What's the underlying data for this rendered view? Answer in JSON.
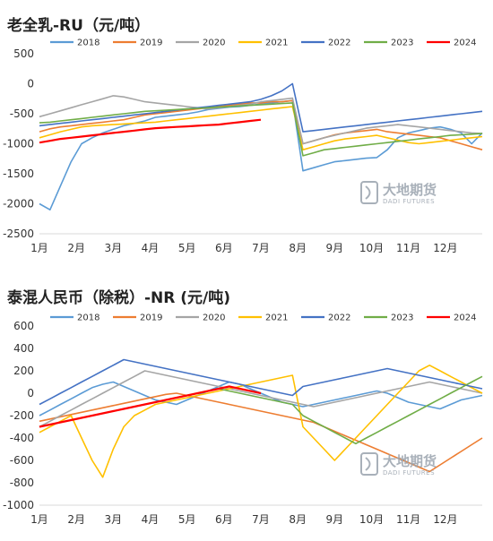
{
  "brand": {
    "name_cn": "大地期货",
    "name_en": "DADI FUTURES"
  },
  "chart_data": [
    {
      "type": "line",
      "title": "老全乳-RU（元/吨）",
      "x_tick_labels": [
        "1月",
        "2月",
        "3月",
        "4月",
        "5月",
        "6月",
        "7月",
        "8月",
        "9月",
        "10月",
        "11月",
        "12月"
      ],
      "y_ticks": [
        500,
        0,
        -500,
        -1000,
        -1500,
        -2000,
        -2500
      ],
      "ylim": [
        -2500,
        500
      ],
      "grid": false,
      "legend_position": "top",
      "series": [
        {
          "name": "2018",
          "color": "#5b9bd5",
          "values": [
            -2000,
            -2100,
            -1700,
            -1300,
            -1000,
            -900,
            -820,
            -760,
            -700,
            -660,
            -620,
            -560,
            -540,
            -520,
            -500,
            -470,
            -430,
            -410,
            -390,
            -380,
            -360,
            -340,
            -320,
            -300,
            -280,
            -1450,
            -1400,
            -1350,
            -1300,
            -1280,
            -1260,
            -1240,
            -1230,
            -1100,
            -900,
            -820,
            -780,
            -740,
            -720,
            -760,
            -820,
            -1000,
            -820
          ]
        },
        {
          "name": "2019",
          "color": "#ed7d31",
          "values": [
            -800,
            -750,
            -720,
            -700,
            -680,
            -660,
            -640,
            -620,
            -600,
            -560,
            -520,
            -500,
            -480,
            -460,
            -440,
            -420,
            -400,
            -380,
            -360,
            -340,
            -320,
            -320,
            -300,
            -300,
            -280,
            -1000,
            -950,
            -900,
            -850,
            -820,
            -800,
            -780,
            -760,
            -800,
            -820,
            -840,
            -860,
            -880,
            -900,
            -950,
            -1000,
            -1050,
            -1100
          ]
        },
        {
          "name": "2020",
          "color": "#a5a5a5",
          "values": [
            -550,
            -500,
            -450,
            -400,
            -350,
            -300,
            -250,
            -200,
            -220,
            -260,
            -300,
            -320,
            -340,
            -360,
            -380,
            -400,
            -420,
            -400,
            -380,
            -360,
            -340,
            -300,
            -280,
            -260,
            -240,
            -1000,
            -950,
            -900,
            -860,
            -820,
            -780,
            -740,
            -720,
            -700,
            -680,
            -700,
            -720,
            -740,
            -760,
            -780,
            -800,
            -820,
            -830
          ]
        },
        {
          "name": "2021",
          "color": "#ffc000",
          "values": [
            -900,
            -850,
            -800,
            -760,
            -720,
            -700,
            -690,
            -680,
            -670,
            -660,
            -650,
            -640,
            -620,
            -600,
            -580,
            -560,
            -540,
            -520,
            -500,
            -480,
            -460,
            -440,
            -420,
            -400,
            -380,
            -1100,
            -1050,
            -1000,
            -950,
            -920,
            -900,
            -880,
            -860,
            -900,
            -940,
            -980,
            -1000,
            -980,
            -960,
            -940,
            -920,
            -900,
            -880
          ]
        },
        {
          "name": "2022",
          "color": "#4472c4",
          "values": [
            -700,
            -680,
            -660,
            -640,
            -620,
            -600,
            -580,
            -560,
            -540,
            -520,
            -500,
            -480,
            -460,
            -440,
            -420,
            -400,
            -380,
            -360,
            -340,
            -320,
            -300,
            -260,
            -200,
            -120,
            0,
            -800,
            -780,
            -760,
            -740,
            -720,
            -700,
            -680,
            -660,
            -640,
            -620,
            -600,
            -580,
            -560,
            -540,
            -520,
            -500,
            -480,
            -460
          ]
        },
        {
          "name": "2023",
          "color": "#70ad47",
          "values": [
            -650,
            -640,
            -620,
            -600,
            -580,
            -560,
            -540,
            -520,
            -500,
            -480,
            -460,
            -450,
            -440,
            -430,
            -420,
            -410,
            -400,
            -390,
            -380,
            -370,
            -360,
            -350,
            -340,
            -330,
            -320,
            -1200,
            -1150,
            -1100,
            -1080,
            -1060,
            -1040,
            -1020,
            -1000,
            -980,
            -960,
            -940,
            -920,
            -900,
            -880,
            -860,
            -850,
            -840,
            -830
          ]
        },
        {
          "name": "2024",
          "color": "#ff0000",
          "values": [
            -980,
            -950,
            -920,
            -900,
            -880,
            -860,
            -840,
            -820,
            -800,
            -780,
            -760,
            -740,
            -730,
            -720,
            -710,
            -700,
            -690,
            -680,
            -660,
            -640,
            -620,
            -600
          ]
        }
      ]
    },
    {
      "type": "line",
      "title": "泰混人民币（除税）-NR (元/吨)",
      "x_tick_labels": [
        "1月",
        "2月",
        "3月",
        "4月",
        "5月",
        "6月",
        "7月",
        "8月",
        "9月",
        "10月",
        "11月",
        "12月"
      ],
      "y_ticks": [
        600,
        400,
        200,
        0,
        -200,
        -400,
        -600,
        -800,
        -1000
      ],
      "ylim": [
        -1000,
        600
      ],
      "grid": false,
      "legend_position": "top",
      "series": [
        {
          "name": "2018",
          "color": "#5b9bd5",
          "values": [
            -200,
            -150,
            -100,
            -50,
            0,
            50,
            80,
            100,
            60,
            20,
            -20,
            -60,
            -80,
            -100,
            -60,
            -20,
            20,
            60,
            100,
            80,
            40,
            0,
            -40,
            -80,
            -100,
            -120,
            -100,
            -80,
            -60,
            -40,
            -20,
            0,
            20,
            0,
            -40,
            -80,
            -100,
            -120,
            -140,
            -100,
            -60,
            -40,
            -20
          ]
        },
        {
          "name": "2019",
          "color": "#ed7d31",
          "values": [
            -250,
            -230,
            -210,
            -190,
            -170,
            -150,
            -130,
            -110,
            -90,
            -70,
            -50,
            -30,
            -10,
            0,
            -20,
            -40,
            -60,
            -80,
            -100,
            -120,
            -140,
            -160,
            -180,
            -200,
            -220,
            -240,
            -260,
            -300,
            -340,
            -380,
            -420,
            -460,
            -500,
            -540,
            -580,
            -620,
            -660,
            -700,
            -640,
            -580,
            -520,
            -460,
            -400
          ]
        },
        {
          "name": "2020",
          "color": "#a5a5a5",
          "values": [
            -300,
            -250,
            -200,
            -150,
            -100,
            -50,
            0,
            50,
            100,
            150,
            200,
            180,
            160,
            140,
            120,
            100,
            80,
            60,
            40,
            20,
            0,
            -20,
            -40,
            -60,
            -80,
            -100,
            -120,
            -100,
            -80,
            -60,
            -40,
            -20,
            0,
            20,
            40,
            60,
            80,
            100,
            80,
            60,
            40,
            20,
            0
          ]
        },
        {
          "name": "2021",
          "color": "#ffc000",
          "values": [
            -350,
            -300,
            -250,
            -200,
            -400,
            -600,
            -750,
            -500,
            -300,
            -200,
            -150,
            -100,
            -80,
            -60,
            -40,
            -20,
            0,
            20,
            40,
            60,
            80,
            100,
            120,
            140,
            160,
            -300,
            -400,
            -500,
            -600,
            -500,
            -400,
            -300,
            -200,
            -100,
            0,
            100,
            200,
            250,
            200,
            150,
            100,
            50,
            0
          ]
        },
        {
          "name": "2022",
          "color": "#4472c4",
          "values": [
            -100,
            -50,
            0,
            50,
            100,
            150,
            200,
            250,
            300,
            280,
            260,
            240,
            220,
            200,
            180,
            160,
            140,
            120,
            100,
            80,
            60,
            40,
            20,
            0,
            -20,
            60,
            80,
            100,
            120,
            140,
            160,
            180,
            200,
            220,
            200,
            180,
            160,
            140,
            120,
            100,
            80,
            60,
            40
          ]
        },
        {
          "name": "2023",
          "color": "#70ad47",
          "values": [
            -300,
            -280,
            -260,
            -240,
            -220,
            -200,
            -180,
            -160,
            -140,
            -120,
            -100,
            -80,
            -60,
            -40,
            -20,
            0,
            20,
            40,
            20,
            0,
            -20,
            -40,
            -60,
            -80,
            -100,
            -200,
            -250,
            -300,
            -350,
            -400,
            -450,
            -400,
            -350,
            -300,
            -250,
            -200,
            -150,
            -100,
            -50,
            0,
            50,
            100,
            150
          ]
        },
        {
          "name": "2024",
          "color": "#ff0000",
          "values": [
            -300,
            -280,
            -260,
            -240,
            -220,
            -200,
            -180,
            -160,
            -140,
            -120,
            -100,
            -80,
            -60,
            -40,
            -20,
            0,
            20,
            40,
            60,
            40,
            20,
            0
          ]
        }
      ]
    }
  ]
}
